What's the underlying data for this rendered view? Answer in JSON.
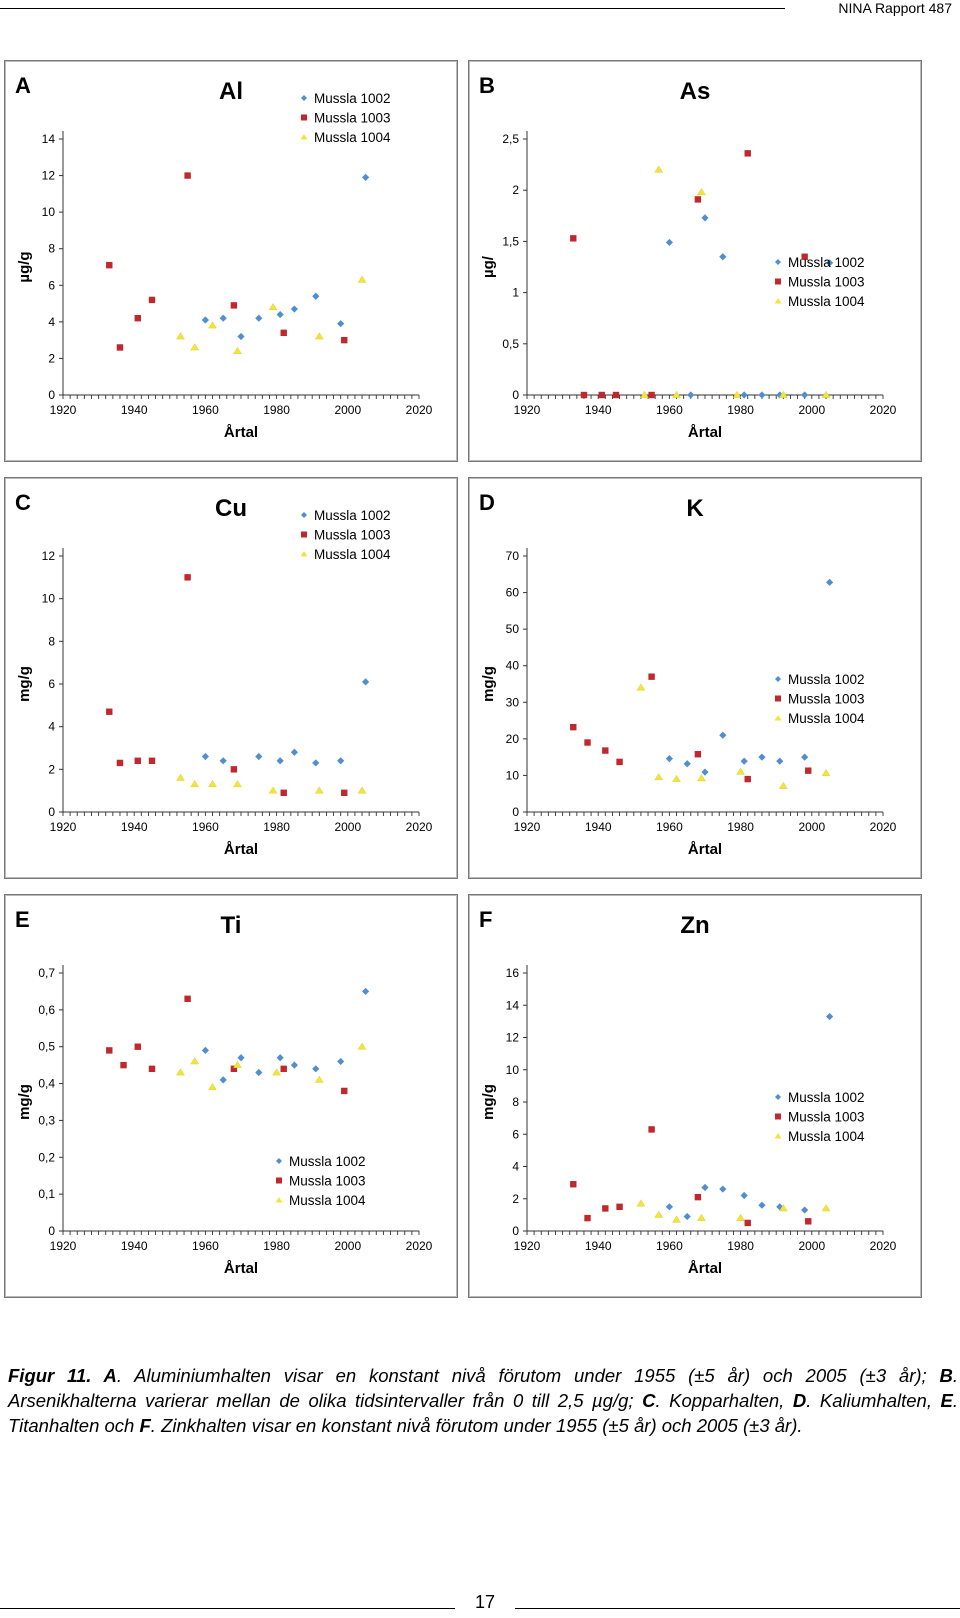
{
  "header": {
    "report": "NINA Rapport 487"
  },
  "caption": {
    "figure": "Figur 11. ",
    "segments": [
      {
        "label": "A",
        "text": ". Aluminiumhalten visar en konstant nivå förutom under 1955 (±5 år) och 2005 (±3 år); "
      },
      {
        "label": "B",
        "text": ". Arsenikhalterna varierar mellan de olika tidsintervaller från 0 till 2,5 µg/g; "
      },
      {
        "label": "C",
        "text": ". Kopparhalten, "
      },
      {
        "label": "D",
        "text": ". Kaliumhalten, "
      },
      {
        "label": "E",
        "text": ". Titanhalten och "
      },
      {
        "label": "F",
        "text": ". Zinkhalten visar en konstant nivå förutom under 1955 (±5 år) och 2005 (±3 år)."
      }
    ]
  },
  "footer": {
    "page": "17"
  },
  "colors": {
    "s1002": "#4f8fd0",
    "s1003": "#c0282e",
    "s1004": "#f2e43a"
  },
  "chart_data": [
    {
      "panel": "A",
      "title": "Al",
      "type": "scatter",
      "xlabel": "Årtal",
      "ylabel": "µg/g",
      "xlim": [
        1920,
        2020
      ],
      "ylim": [
        0,
        14
      ],
      "yticks": [
        0,
        2,
        4,
        6,
        8,
        10,
        12,
        14
      ],
      "ytick_labels": [
        "0",
        "2",
        "4",
        "6",
        "8",
        "10",
        "12",
        "14"
      ],
      "xticks": [
        1920,
        1940,
        1960,
        1980,
        2000,
        2020
      ],
      "legend_pos": "top-right",
      "series": [
        {
          "name": "Mussla 1002",
          "points": [
            [
              1960,
              4.1
            ],
            [
              1965,
              4.2
            ],
            [
              1970,
              3.2
            ],
            [
              1975,
              4.2
            ],
            [
              1981,
              4.4
            ],
            [
              1985,
              4.7
            ],
            [
              1991,
              5.4
            ],
            [
              1998,
              3.9
            ],
            [
              2005,
              11.9
            ]
          ]
        },
        {
          "name": "Mussla 1003",
          "points": [
            [
              1933,
              7.1
            ],
            [
              1936,
              2.6
            ],
            [
              1941,
              4.2
            ],
            [
              1945,
              5.2
            ],
            [
              1955,
              12.0
            ],
            [
              1968,
              4.9
            ],
            [
              1982,
              3.4
            ],
            [
              1999,
              3.0
            ]
          ]
        },
        {
          "name": "Mussla 1004",
          "points": [
            [
              1953,
              3.2
            ],
            [
              1957,
              2.6
            ],
            [
              1962,
              3.8
            ],
            [
              1969,
              2.4
            ],
            [
              1979,
              4.8
            ],
            [
              1992,
              3.2
            ],
            [
              2004,
              6.3
            ]
          ]
        }
      ]
    },
    {
      "panel": "B",
      "title": "As",
      "type": "scatter",
      "xlabel": "Årtal",
      "ylabel": "µg/",
      "xlim": [
        1920,
        2020
      ],
      "ylim": [
        0,
        2.5
      ],
      "yticks": [
        0,
        0.5,
        1,
        1.5,
        2,
        2.5
      ],
      "ytick_labels": [
        "0",
        "0,5",
        "1",
        "1,5",
        "2",
        "2,5"
      ],
      "xticks": [
        1920,
        1940,
        1960,
        1980,
        2000,
        2020
      ],
      "legend_pos": "right",
      "series": [
        {
          "name": "Mussla 1002",
          "points": [
            [
              1960,
              1.49
            ],
            [
              1970,
              1.73
            ],
            [
              1975,
              1.35
            ],
            [
              2005,
              1.29
            ],
            [
              1966,
              0
            ],
            [
              1981,
              0
            ],
            [
              1986,
              0
            ],
            [
              1991,
              0
            ],
            [
              1998,
              0
            ]
          ]
        },
        {
          "name": "Mussla 1003",
          "points": [
            [
              1933,
              1.53
            ],
            [
              1968,
              1.91
            ],
            [
              1982,
              2.36
            ],
            [
              1998,
              1.35
            ],
            [
              1936,
              0
            ],
            [
              1941,
              0
            ],
            [
              1945,
              0
            ],
            [
              1955,
              0
            ]
          ]
        },
        {
          "name": "Mussla 1004",
          "points": [
            [
              1957,
              2.2
            ],
            [
              1969,
              1.98
            ],
            [
              1953,
              0
            ],
            [
              1962,
              0
            ],
            [
              1979,
              0
            ],
            [
              1992,
              0
            ],
            [
              2004,
              0
            ]
          ]
        }
      ]
    },
    {
      "panel": "C",
      "title": "Cu",
      "type": "scatter",
      "xlabel": "Årtal",
      "ylabel": "mg/g",
      "xlim": [
        1920,
        2020
      ],
      "ylim": [
        0,
        12
      ],
      "yticks": [
        0,
        2,
        4,
        6,
        8,
        10,
        12
      ],
      "ytick_labels": [
        "0",
        "2",
        "4",
        "6",
        "8",
        "10",
        "12"
      ],
      "xticks": [
        1920,
        1940,
        1960,
        1980,
        2000,
        2020
      ],
      "legend_pos": "top-right",
      "series": [
        {
          "name": "Mussla 1002",
          "points": [
            [
              1960,
              2.6
            ],
            [
              1965,
              2.4
            ],
            [
              1975,
              2.6
            ],
            [
              1981,
              2.4
            ],
            [
              1985,
              2.8
            ],
            [
              1991,
              2.3
            ],
            [
              1998,
              2.4
            ],
            [
              2005,
              6.1
            ]
          ]
        },
        {
          "name": "Mussla 1003",
          "points": [
            [
              1933,
              4.7
            ],
            [
              1936,
              2.3
            ],
            [
              1941,
              2.4
            ],
            [
              1945,
              2.4
            ],
            [
              1955,
              11.0
            ],
            [
              1968,
              2.0
            ],
            [
              1982,
              0.9
            ],
            [
              1999,
              0.9
            ]
          ]
        },
        {
          "name": "Mussla 1004",
          "points": [
            [
              1953,
              1.6
            ],
            [
              1957,
              1.3
            ],
            [
              1962,
              1.3
            ],
            [
              1969,
              1.3
            ],
            [
              1979,
              1.0
            ],
            [
              1992,
              1.0
            ],
            [
              2004,
              1.0
            ]
          ]
        }
      ]
    },
    {
      "panel": "D",
      "title": "K",
      "type": "scatter",
      "xlabel": "Årtal",
      "ylabel": "mg/g",
      "xlim": [
        1920,
        2020
      ],
      "ylim": [
        0,
        70
      ],
      "yticks": [
        0,
        10,
        20,
        30,
        40,
        50,
        60,
        70
      ],
      "ytick_labels": [
        "0",
        "10",
        "20",
        "30",
        "40",
        "50",
        "60",
        "70"
      ],
      "xticks": [
        1920,
        1940,
        1960,
        1980,
        2000,
        2020
      ],
      "legend_pos": "right",
      "series": [
        {
          "name": "Mussla 1002",
          "points": [
            [
              1960,
              14.6
            ],
            [
              1965,
              13.2
            ],
            [
              1970,
              10.9
            ],
            [
              1975,
              21.0
            ],
            [
              1981,
              13.9
            ],
            [
              1986,
              15.0
            ],
            [
              1991,
              13.9
            ],
            [
              1998,
              15.0
            ],
            [
              2005,
              62.8
            ]
          ]
        },
        {
          "name": "Mussla 1003",
          "points": [
            [
              1933,
              23.2
            ],
            [
              1937,
              19.0
            ],
            [
              1942,
              16.8
            ],
            [
              1946,
              13.7
            ],
            [
              1955,
              37.0
            ],
            [
              1968,
              15.8
            ],
            [
              1982,
              9.0
            ],
            [
              1999,
              11.3
            ]
          ]
        },
        {
          "name": "Mussla 1004",
          "points": [
            [
              1952,
              34.0
            ],
            [
              1957,
              9.5
            ],
            [
              1962,
              9.0
            ],
            [
              1969,
              9.2
            ],
            [
              1980,
              11.0
            ],
            [
              1992,
              7.1
            ],
            [
              2004,
              10.6
            ]
          ]
        }
      ]
    },
    {
      "panel": "E",
      "title": "Ti",
      "type": "scatter",
      "xlabel": "Årtal",
      "ylabel": "mg/g",
      "xlim": [
        1920,
        2020
      ],
      "ylim": [
        0,
        0.7
      ],
      "yticks": [
        0,
        0.1,
        0.2,
        0.3,
        0.4,
        0.5,
        0.6,
        0.7
      ],
      "ytick_labels": [
        "0",
        "0,1",
        "0,2",
        "0,3",
        "0,4",
        "0,5",
        "0,6",
        "0,7"
      ],
      "xticks": [
        1920,
        1940,
        1960,
        1980,
        2000,
        2020
      ],
      "legend_pos": "bottom-right",
      "series": [
        {
          "name": "Mussla 1002",
          "points": [
            [
              1960,
              0.49
            ],
            [
              1965,
              0.41
            ],
            [
              1970,
              0.47
            ],
            [
              1975,
              0.43
            ],
            [
              1981,
              0.47
            ],
            [
              1985,
              0.45
            ],
            [
              1991,
              0.44
            ],
            [
              1998,
              0.46
            ],
            [
              2005,
              0.65
            ]
          ]
        },
        {
          "name": "Mussla 1003",
          "points": [
            [
              1933,
              0.49
            ],
            [
              1937,
              0.45
            ],
            [
              1941,
              0.5
            ],
            [
              1945,
              0.44
            ],
            [
              1955,
              0.63
            ],
            [
              1968,
              0.44
            ],
            [
              1982,
              0.44
            ],
            [
              1999,
              0.38
            ]
          ]
        },
        {
          "name": "Mussla 1004",
          "points": [
            [
              1953,
              0.43
            ],
            [
              1957,
              0.46
            ],
            [
              1962,
              0.39
            ],
            [
              1969,
              0.45
            ],
            [
              1980,
              0.43
            ],
            [
              1992,
              0.41
            ],
            [
              2004,
              0.5
            ]
          ]
        }
      ]
    },
    {
      "panel": "F",
      "title": "Zn",
      "type": "scatter",
      "xlabel": "Årtal",
      "ylabel": "mg/g",
      "xlim": [
        1920,
        2020
      ],
      "ylim": [
        0,
        16
      ],
      "yticks": [
        0,
        2,
        4,
        6,
        8,
        10,
        12,
        14,
        16
      ],
      "ytick_labels": [
        "0",
        "2",
        "4",
        "6",
        "8",
        "10",
        "12",
        "14",
        "16"
      ],
      "xticks": [
        1920,
        1940,
        1960,
        1980,
        2000,
        2020
      ],
      "legend_pos": "right",
      "series": [
        {
          "name": "Mussla 1002",
          "points": [
            [
              1960,
              1.5
            ],
            [
              1965,
              0.9
            ],
            [
              1970,
              2.7
            ],
            [
              1975,
              2.6
            ],
            [
              1981,
              2.2
            ],
            [
              1986,
              1.6
            ],
            [
              1991,
              1.5
            ],
            [
              1998,
              1.3
            ],
            [
              2005,
              13.3
            ]
          ]
        },
        {
          "name": "Mussla 1003",
          "points": [
            [
              1933,
              2.9
            ],
            [
              1937,
              0.8
            ],
            [
              1942,
              1.4
            ],
            [
              1946,
              1.5
            ],
            [
              1955,
              6.3
            ],
            [
              1968,
              2.1
            ],
            [
              1982,
              0.5
            ],
            [
              1999,
              0.6
            ]
          ]
        },
        {
          "name": "Mussla 1004",
          "points": [
            [
              1952,
              1.7
            ],
            [
              1957,
              1.0
            ],
            [
              1962,
              0.7
            ],
            [
              1969,
              0.8
            ],
            [
              1980,
              0.8
            ],
            [
              1992,
              1.4
            ],
            [
              2004,
              1.4
            ]
          ]
        }
      ]
    }
  ]
}
